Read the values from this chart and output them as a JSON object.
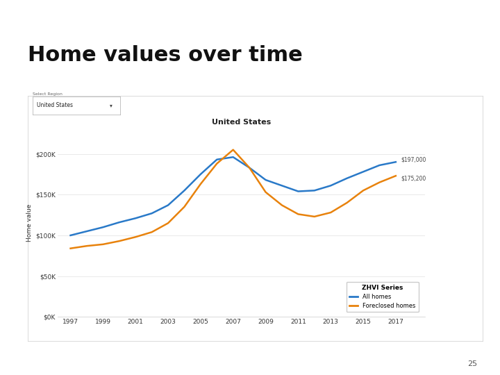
{
  "title": "Home values over time",
  "chart_title": "United States",
  "ylabel": "Home value",
  "background_color": "#ffffff",
  "title_fontsize": 22,
  "title_color": "#111111",
  "separator_color": "#8b1a1a",
  "page_number": "25",
  "years": [
    1997,
    1998,
    1999,
    2000,
    2001,
    2002,
    2003,
    2004,
    2005,
    2006,
    2007,
    2008,
    2009,
    2010,
    2011,
    2012,
    2013,
    2014,
    2015,
    2016,
    2017
  ],
  "all_homes": [
    100000,
    105000,
    110000,
    116000,
    121000,
    127000,
    137000,
    155000,
    175000,
    193000,
    196000,
    183000,
    168000,
    161000,
    154000,
    155000,
    161000,
    170000,
    178000,
    186000,
    190000
  ],
  "foreclosed_homes": [
    84000,
    87000,
    89000,
    93000,
    98000,
    104000,
    115000,
    135000,
    163000,
    188000,
    205000,
    183000,
    153000,
    137000,
    126000,
    123000,
    128000,
    140000,
    155000,
    165000,
    173000
  ],
  "all_homes_color": "#2979c8",
  "foreclosed_homes_color": "#e8820c",
  "end_label_all": "$197,000",
  "end_label_foreclosed": "$175,200",
  "legend_title": "ZHVI Series",
  "legend_all": "All homes",
  "legend_foreclosed": "Foreclosed homes",
  "dropdown_label": "Select Region",
  "dropdown_value": "United States",
  "yticks": [
    0,
    50000,
    100000,
    150000,
    200000
  ],
  "ytick_labels": [
    "$0K",
    "$50K",
    "$100K",
    "$150K",
    "$200K"
  ],
  "ylim": [
    0,
    230000
  ],
  "xlim_left": 1996.2,
  "xlim_right": 2018.8,
  "xticks": [
    1997,
    1999,
    2001,
    2003,
    2005,
    2007,
    2009,
    2011,
    2013,
    2015,
    2017
  ],
  "chart_panel_bg": "#ffffff",
  "chart_border_color": "#cccccc",
  "grid_color": "#e0e0e0"
}
